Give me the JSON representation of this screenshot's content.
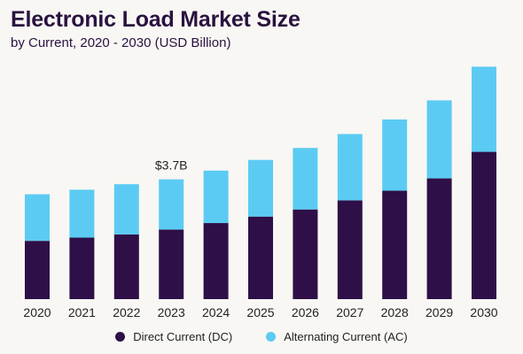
{
  "title": "Electronic Load Market Size",
  "subtitle": "by Current, 2020 - 2030 (USD Billion)",
  "colors": {
    "dc": "#2e0f47",
    "ac": "#5ccbf3"
  },
  "chart_data": {
    "type": "bar",
    "stacked": true,
    "categories": [
      "2020",
      "2021",
      "2022",
      "2023",
      "2024",
      "2025",
      "2026",
      "2027",
      "2028",
      "2029",
      "2030"
    ],
    "series": [
      {
        "name": "Direct Current (DC)",
        "values": [
          1.8,
          1.9,
          2.0,
          2.15,
          2.35,
          2.55,
          2.77,
          3.05,
          3.35,
          3.73,
          4.55
        ]
      },
      {
        "name": "Alternating Current (AC)",
        "values": [
          1.44,
          1.48,
          1.55,
          1.55,
          1.62,
          1.75,
          1.9,
          2.05,
          2.2,
          2.41,
          2.63
        ]
      }
    ],
    "annotations": [
      {
        "category": "2023",
        "text": "$3.7B"
      }
    ],
    "ylim": [
      0,
      7.6
    ],
    "legend_position": "bottom",
    "grid": false
  }
}
